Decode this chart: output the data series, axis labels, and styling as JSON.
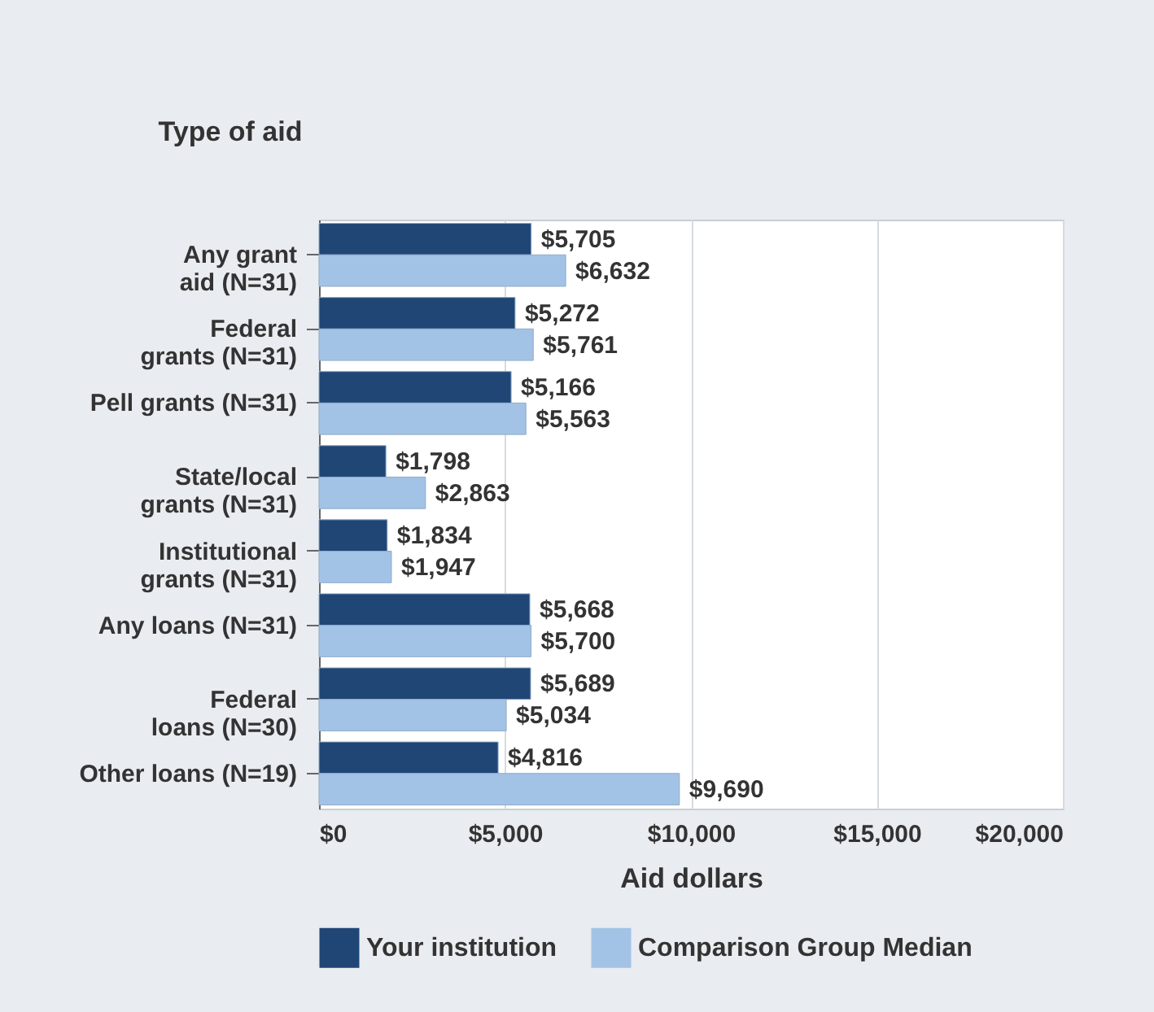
{
  "chart_data": {
    "type": "bar",
    "orientation": "horizontal",
    "ylabel": "Type of aid",
    "xlabel": "Aid dollars",
    "categories": [
      "Any grant aid (N=31)",
      "Federal grants (N=31)",
      "Pell grants (N=31)",
      "State/local grants (N=31)",
      "Institutional grants (N=31)",
      "Any loans (N=31)",
      "Federal loans (N=30)",
      "Other loans (N=19)"
    ],
    "series": [
      {
        "name": "Your institution",
        "color": "#1f4675",
        "values": [
          5705,
          5272,
          5166,
          1798,
          1834,
          5668,
          5689,
          4816
        ],
        "value_labels": [
          "$5,705",
          "$5,272",
          "$5,166",
          "$1,798",
          "$1,834",
          "$5,668",
          "$5,689",
          "$4,816"
        ]
      },
      {
        "name": "Comparison Group Median",
        "color": "#a3c3e6",
        "values": [
          6632,
          5761,
          5563,
          2863,
          1947,
          5700,
          5034,
          9690
        ],
        "value_labels": [
          "$6,632",
          "$5,761",
          "$5,563",
          "$2,863",
          "$1,947",
          "$5,700",
          "$5,034",
          "$9,690"
        ]
      }
    ],
    "xlim": [
      0,
      20000
    ],
    "xticks": [
      {
        "value": 0,
        "label": "$0"
      },
      {
        "value": 5000,
        "label": "$5,000"
      },
      {
        "value": 10000,
        "label": "$10,000"
      },
      {
        "value": 15000,
        "label": "$15,000"
      },
      {
        "value": 20000,
        "label": "$20,000"
      }
    ],
    "grid": "x",
    "legend": "bottom"
  }
}
